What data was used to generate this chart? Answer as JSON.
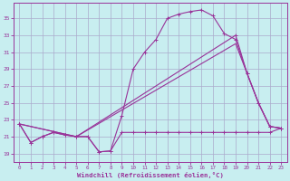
{
  "bg_color": "#c8eef0",
  "grid_color": "#aaaacc",
  "line_color": "#993399",
  "x_label": "Windchill (Refroidissement éolien,°C)",
  "ylabel_ticks": [
    19,
    21,
    23,
    25,
    27,
    29,
    31,
    33,
    35
  ],
  "xlim": [
    -0.5,
    23.5
  ],
  "ylim": [
    18.0,
    36.8
  ],
  "xticks": [
    0,
    1,
    2,
    3,
    4,
    5,
    6,
    7,
    8,
    9,
    10,
    11,
    12,
    13,
    14,
    15,
    16,
    17,
    18,
    19,
    20,
    21,
    22,
    23
  ],
  "curve_main_x": [
    0,
    1,
    2,
    3,
    4,
    5,
    6,
    7,
    8,
    9,
    10,
    11,
    12,
    13,
    14,
    15,
    16,
    17,
    18,
    19,
    20,
    21,
    22,
    23
  ],
  "curve_main_y": [
    22.5,
    20.3,
    21.0,
    21.5,
    21.2,
    21.0,
    21.0,
    19.2,
    19.3,
    23.5,
    29.0,
    31.0,
    32.5,
    35.0,
    35.5,
    35.8,
    36.0,
    35.3,
    33.2,
    32.5,
    28.5,
    25.0,
    22.2,
    22.0
  ],
  "curve_flat_x": [
    0,
    1,
    2,
    3,
    4,
    5,
    6,
    7,
    8,
    9,
    10,
    11,
    12,
    13,
    14,
    15,
    16,
    17,
    18,
    19,
    20,
    21,
    22,
    23
  ],
  "curve_flat_y": [
    22.5,
    20.3,
    21.0,
    21.5,
    21.2,
    21.0,
    21.0,
    19.2,
    19.3,
    21.5,
    21.5,
    21.5,
    21.5,
    21.5,
    21.5,
    21.5,
    21.5,
    21.5,
    21.5,
    21.5,
    21.5,
    21.5,
    21.5,
    22.0
  ],
  "curve_diag1_x": [
    0,
    5,
    19,
    20,
    21,
    22,
    23
  ],
  "curve_diag1_y": [
    22.5,
    21.0,
    33.0,
    28.5,
    25.0,
    22.2,
    22.0
  ],
  "curve_diag2_x": [
    0,
    5,
    19,
    20,
    21,
    22,
    23
  ],
  "curve_diag2_y": [
    22.5,
    21.0,
    32.0,
    28.5,
    25.0,
    22.2,
    22.0
  ]
}
